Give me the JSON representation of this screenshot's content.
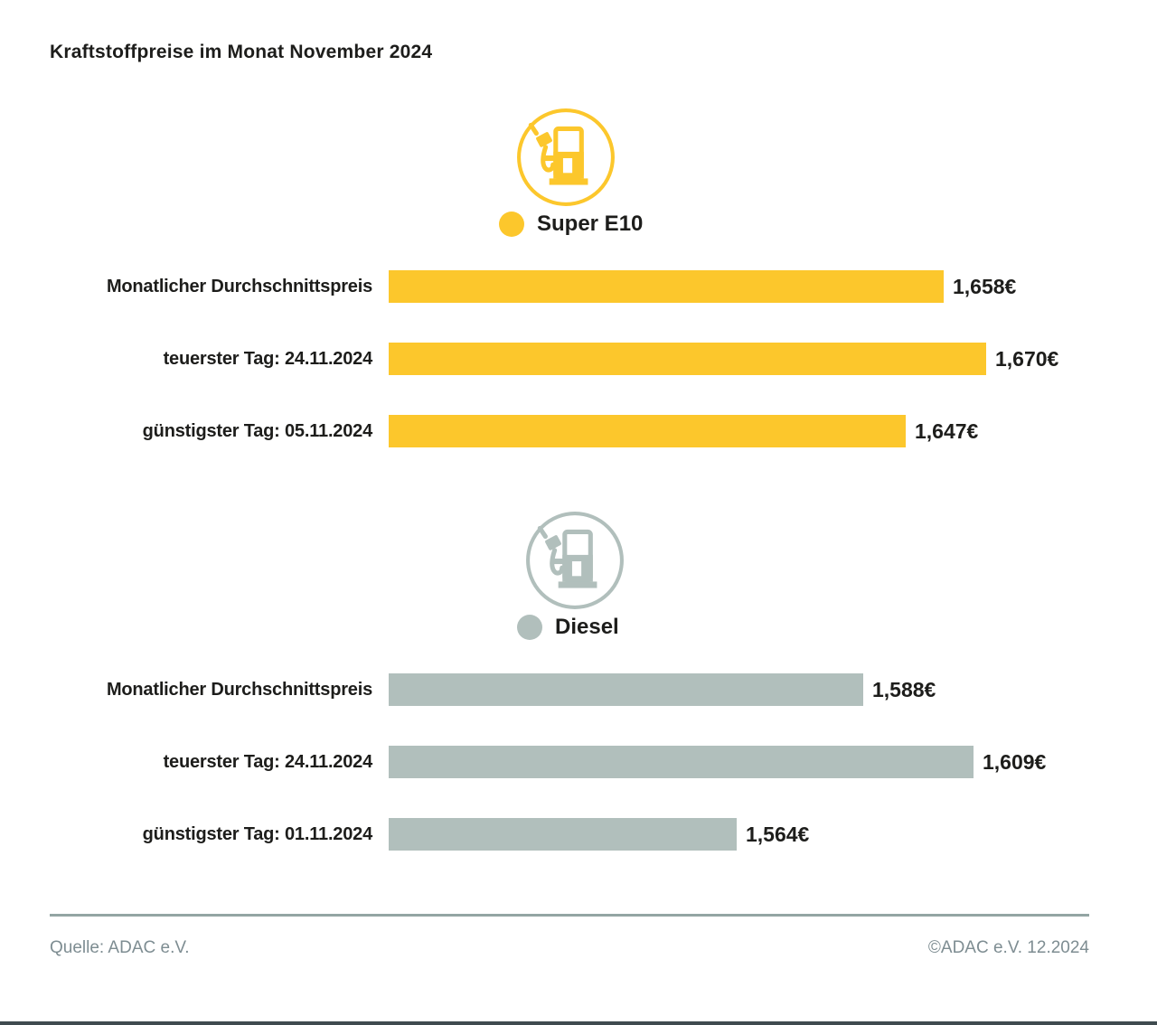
{
  "title": "Kraftstoffpreise im Monat November 2024",
  "colors": {
    "super": "#FCC72C",
    "diesel": "#B1BFBC",
    "text": "#1D1D1B",
    "footer_text": "#7E8D92",
    "divider": "#93A5A3"
  },
  "icons": {
    "super": "fuel-pump-icon",
    "diesel": "fuel-pump-icon",
    "legend_super": "legend-dot-yellow",
    "legend_diesel": "legend-dot-gray"
  },
  "chart_data": [
    {
      "type": "bar",
      "title": "Super E10",
      "color": "#FCC72C",
      "categories": [
        "Monatlicher Durchschnittspreis",
        "teuerster Tag: 24.11.2024",
        "günstigster Tag: 05.11.2024"
      ],
      "values": [
        1.658,
        1.67,
        1.647
      ],
      "value_labels": [
        "1,658€",
        "1,670€",
        "1,647€"
      ],
      "unit": "€/Liter",
      "xlim": [
        1.5,
        1.68
      ],
      "orientation": "horizontal",
      "grid": false,
      "legend_position": "above-bars"
    },
    {
      "type": "bar",
      "title": "Diesel",
      "color": "#B1BFBC",
      "categories": [
        "Monatlicher Durchschnittspreis",
        "teuerster Tag: 24.11.2024",
        "günstigster Tag: 01.11.2024"
      ],
      "values": [
        1.588,
        1.609,
        1.564
      ],
      "value_labels": [
        "1,588€",
        "1,609€",
        "1,564€"
      ],
      "unit": "€/Liter",
      "xlim": [
        1.498,
        1.618
      ],
      "orientation": "horizontal",
      "grid": false,
      "legend_position": "above-bars"
    }
  ],
  "footer": {
    "source": "Quelle: ADAC e.V.",
    "copyright": "©ADAC e.V. 12.2024"
  }
}
